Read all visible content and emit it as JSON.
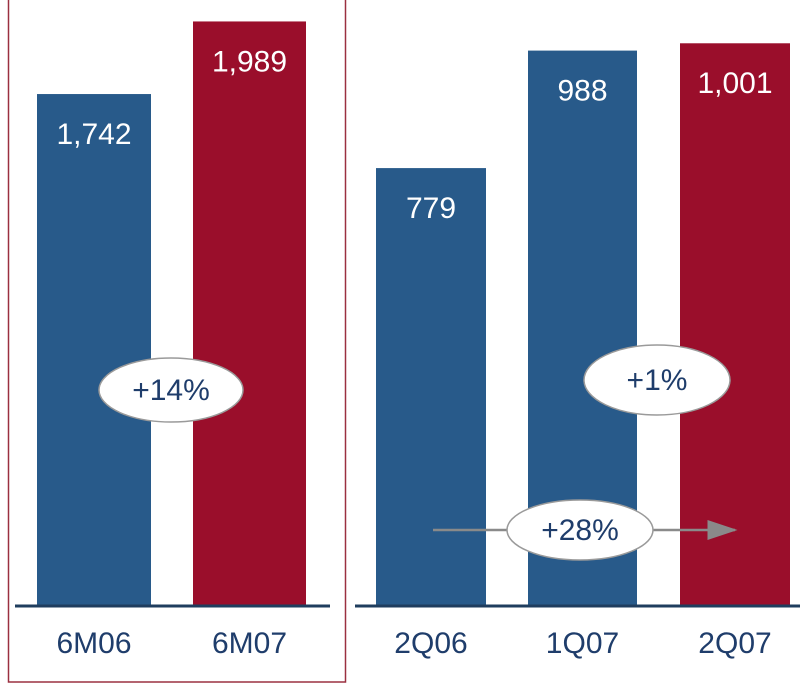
{
  "chart_data": [
    {
      "type": "bar",
      "categories": [
        "6M06",
        "6M07"
      ],
      "values": [
        1742,
        1989
      ],
      "value_labels": [
        "1,742",
        "1,989"
      ],
      "colors": [
        "#285a8a",
        "#9a0e2b"
      ],
      "ylim": [
        0,
        2062
      ],
      "annotations": [
        "+14%"
      ]
    },
    {
      "type": "bar",
      "categories": [
        "2Q06",
        "1Q07",
        "2Q07"
      ],
      "values": [
        779,
        988,
        1001
      ],
      "value_labels": [
        "779",
        "988",
        "1,001"
      ],
      "colors": [
        "#285a8a",
        "#285a8a",
        "#9a0e2b"
      ],
      "ylim": [
        0,
        1078
      ],
      "annotations": [
        "+1%",
        "+28%"
      ]
    }
  ]
}
